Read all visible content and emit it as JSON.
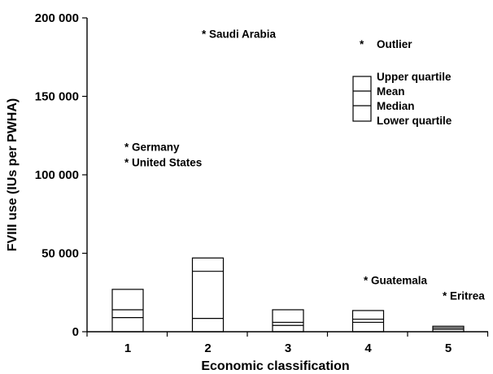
{
  "chart_data": {
    "type": "box",
    "title": "",
    "xlabel": "Economic classification",
    "ylabel": "FVIII use (IUs per PWHA)",
    "ylim": [
      0,
      200000
    ],
    "yticks": [
      0,
      50000,
      100000,
      150000,
      200000
    ],
    "ytick_labels": [
      "0",
      "50 000",
      "100 000",
      "150 000",
      "200 000"
    ],
    "categories": [
      "1",
      "2",
      "3",
      "4",
      "5"
    ],
    "boxes": [
      {
        "category": "1",
        "lower_quartile": 0,
        "median": 9000,
        "mean": 14000,
        "upper_quartile": 27000
      },
      {
        "category": "2",
        "lower_quartile": 0,
        "median": 8500,
        "mean": 38500,
        "upper_quartile": 47000
      },
      {
        "category": "3",
        "lower_quartile": 0,
        "median": 4000,
        "mean": 6000,
        "upper_quartile": 14000
      },
      {
        "category": "4",
        "lower_quartile": 0,
        "median": 6000,
        "mean": 8000,
        "upper_quartile": 13500
      },
      {
        "category": "5",
        "lower_quartile": 0,
        "median": 1500,
        "mean": 2500,
        "upper_quartile": 3500
      }
    ],
    "outliers": [
      {
        "label": "Saudi Arabia",
        "category": "2",
        "value": 190000
      },
      {
        "label": "Germany",
        "category": "1",
        "value": 118000
      },
      {
        "label": "United States",
        "category": "1",
        "value": 108000
      },
      {
        "label": "Guatemala",
        "category": "4",
        "value": 33000
      },
      {
        "label": "Eritrea",
        "category": "5",
        "value": 23000
      }
    ],
    "legend": {
      "position": "top-right",
      "outlier_label": "Outlier",
      "items": [
        "Upper quartile",
        "Mean",
        "Median",
        "Lower quartile"
      ]
    }
  }
}
